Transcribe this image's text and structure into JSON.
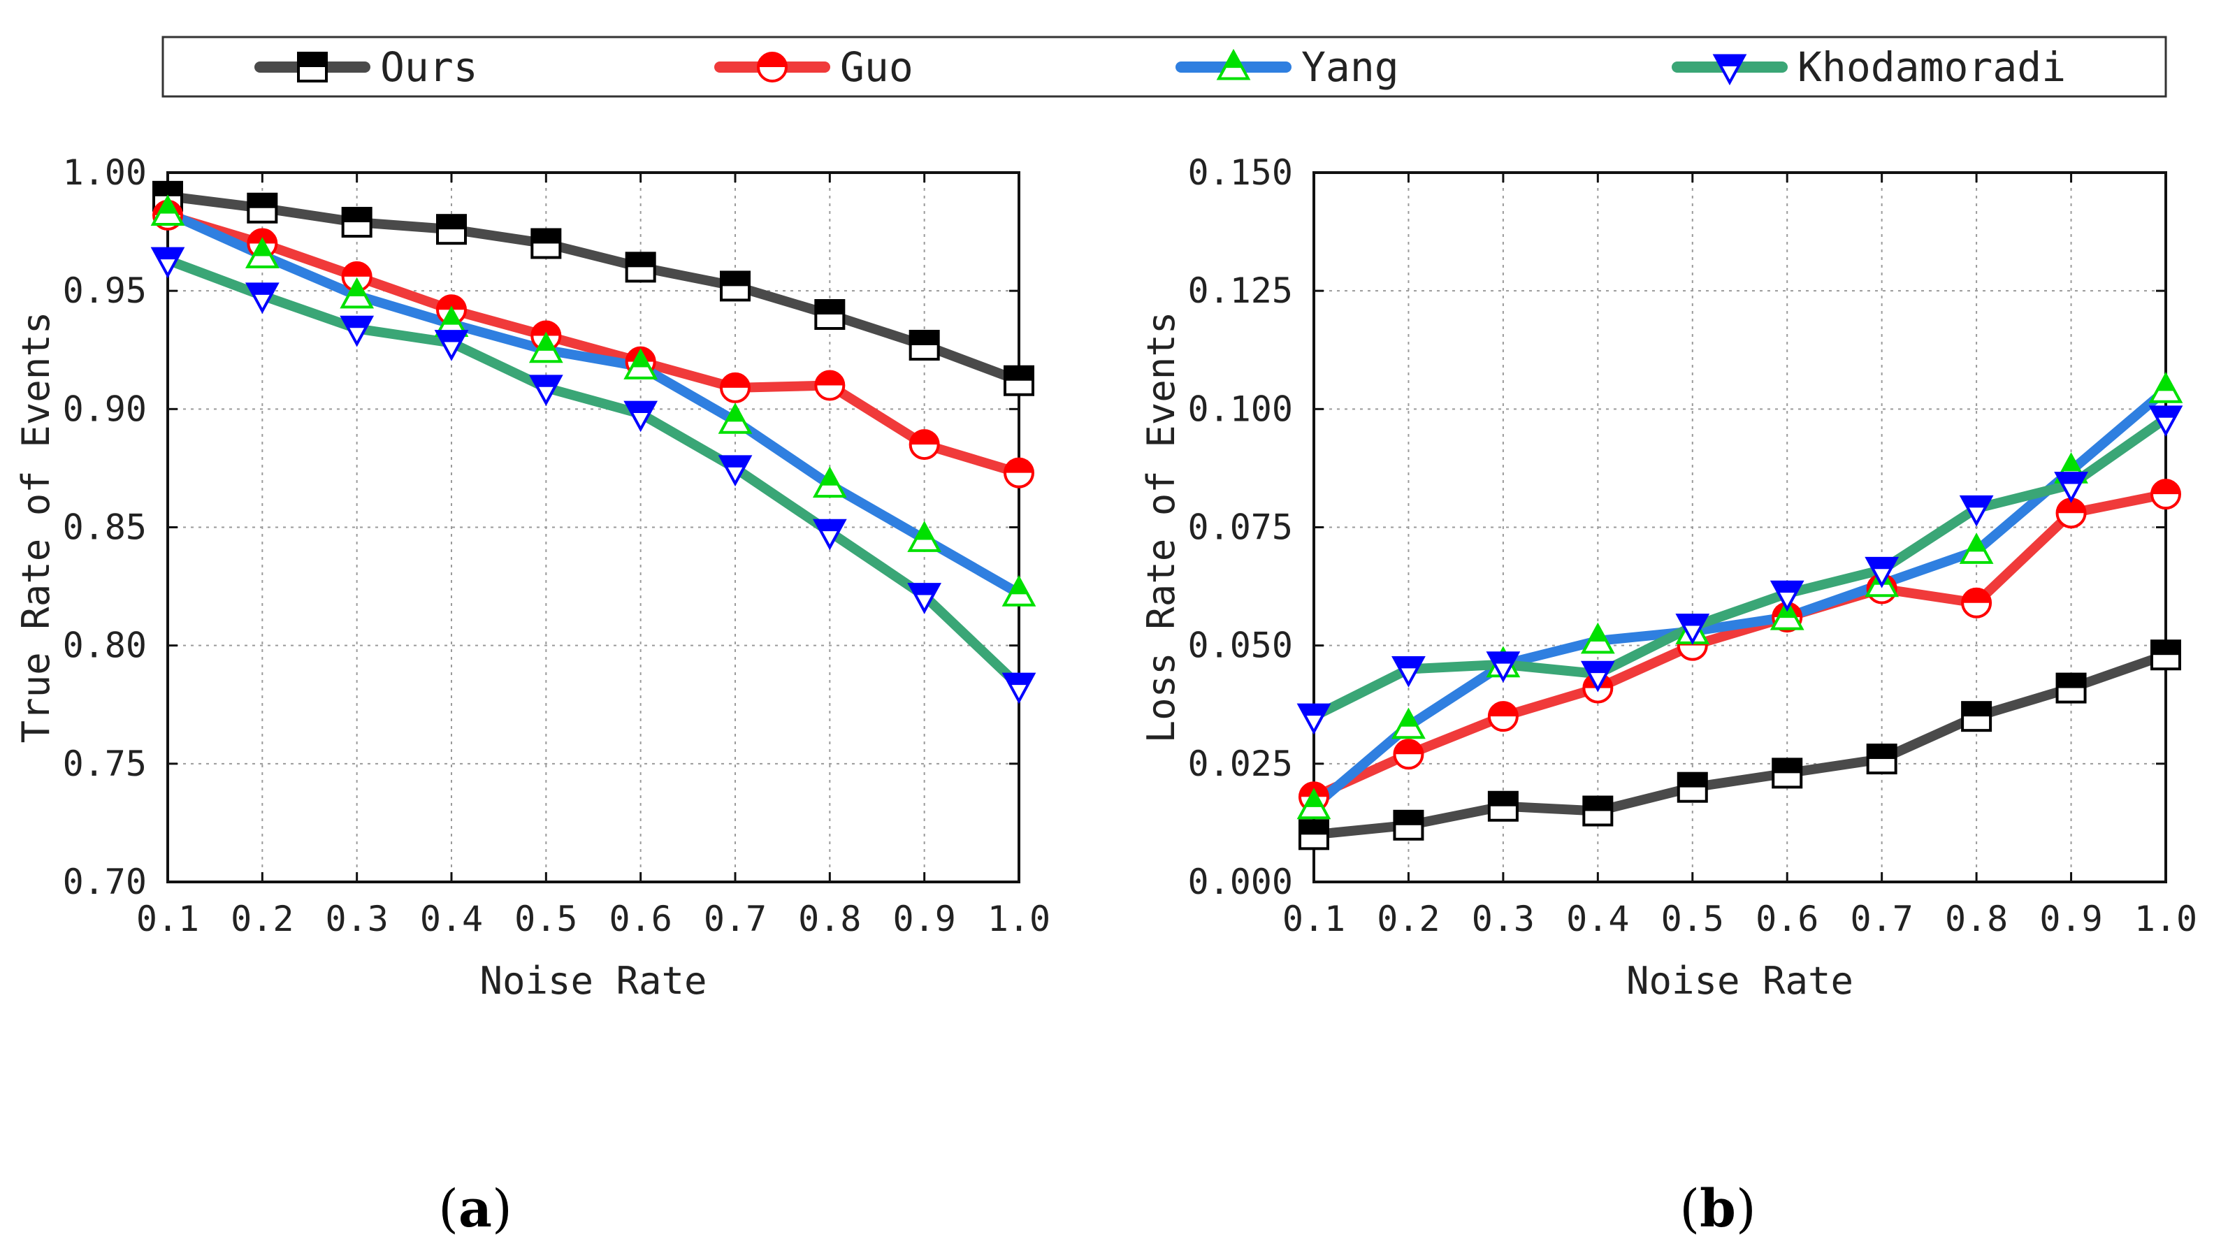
{
  "legend": {
    "entries": [
      {
        "name": "Ours",
        "color": "#4a4a4a",
        "marker": "square",
        "fill": "#000000"
      },
      {
        "name": "Guo",
        "color": "#f03a3a",
        "marker": "circle",
        "fill": "#ff0000"
      },
      {
        "name": "Yang",
        "color": "#2f7fe0",
        "marker": "triangle-up",
        "fill": "#00e000"
      },
      {
        "name": "Khodamoradi",
        "color": "#3aa676",
        "marker": "triangle-down",
        "fill": "#0000ff"
      }
    ]
  },
  "chart_data": [
    {
      "type": "line",
      "panel_label": "(a)",
      "panel_letter": "a",
      "xlabel": "Noise Rate",
      "ylabel": "True Rate of Events",
      "x": [
        0.1,
        0.2,
        0.3,
        0.4,
        0.5,
        0.6,
        0.7,
        0.8,
        0.9,
        1.0
      ],
      "xticks": [
        "0.1",
        "0.2",
        "0.3",
        "0.4",
        "0.5",
        "0.6",
        "0.7",
        "0.8",
        "0.9",
        "1.0"
      ],
      "xlim": [
        0.1,
        1.0
      ],
      "ylim": [
        0.7,
        1.0
      ],
      "yticks": [
        "0.70",
        "0.75",
        "0.80",
        "0.85",
        "0.90",
        "0.95",
        "1.00"
      ],
      "ytick_values": [
        0.7,
        0.75,
        0.8,
        0.85,
        0.9,
        0.95,
        1.0
      ],
      "grid": true,
      "series": [
        {
          "name": "Ours",
          "values": [
            0.99,
            0.985,
            0.979,
            0.976,
            0.97,
            0.96,
            0.952,
            0.94,
            0.927,
            0.912
          ]
        },
        {
          "name": "Guo",
          "values": [
            0.982,
            0.97,
            0.956,
            0.942,
            0.931,
            0.92,
            0.909,
            0.91,
            0.885,
            0.873
          ]
        },
        {
          "name": "Yang",
          "values": [
            0.983,
            0.965,
            0.948,
            0.936,
            0.925,
            0.918,
            0.895,
            0.868,
            0.845,
            0.822
          ]
        },
        {
          "name": "Khodamoradi",
          "values": [
            0.963,
            0.948,
            0.934,
            0.928,
            0.909,
            0.898,
            0.875,
            0.848,
            0.821,
            0.783
          ]
        }
      ]
    },
    {
      "type": "line",
      "panel_label": "(b)",
      "panel_letter": "b",
      "xlabel": "Noise Rate",
      "ylabel": "Loss Rate of Events",
      "x": [
        0.1,
        0.2,
        0.3,
        0.4,
        0.5,
        0.6,
        0.7,
        0.8,
        0.9,
        1.0
      ],
      "xticks": [
        "0.1",
        "0.2",
        "0.3",
        "0.4",
        "0.5",
        "0.6",
        "0.7",
        "0.8",
        "0.9",
        "1.0"
      ],
      "xlim": [
        0.1,
        1.0
      ],
      "ylim": [
        0.0,
        0.15
      ],
      "yticks": [
        "0.000",
        "0.025",
        "0.050",
        "0.075",
        "0.100",
        "0.125",
        "0.150"
      ],
      "ytick_values": [
        0.0,
        0.025,
        0.05,
        0.075,
        0.1,
        0.125,
        0.15
      ],
      "grid": true,
      "series": [
        {
          "name": "Ours",
          "values": [
            0.01,
            0.012,
            0.016,
            0.015,
            0.02,
            0.023,
            0.026,
            0.035,
            0.041,
            0.048
          ]
        },
        {
          "name": "Guo",
          "values": [
            0.018,
            0.027,
            0.035,
            0.041,
            0.05,
            0.056,
            0.062,
            0.059,
            0.078,
            0.082
          ]
        },
        {
          "name": "Yang",
          "values": [
            0.016,
            0.033,
            0.046,
            0.051,
            0.053,
            0.056,
            0.063,
            0.07,
            0.087,
            0.104
          ]
        },
        {
          "name": "Khodamoradi",
          "values": [
            0.035,
            0.045,
            0.046,
            0.044,
            0.054,
            0.061,
            0.066,
            0.079,
            0.084,
            0.098
          ]
        }
      ]
    }
  ]
}
